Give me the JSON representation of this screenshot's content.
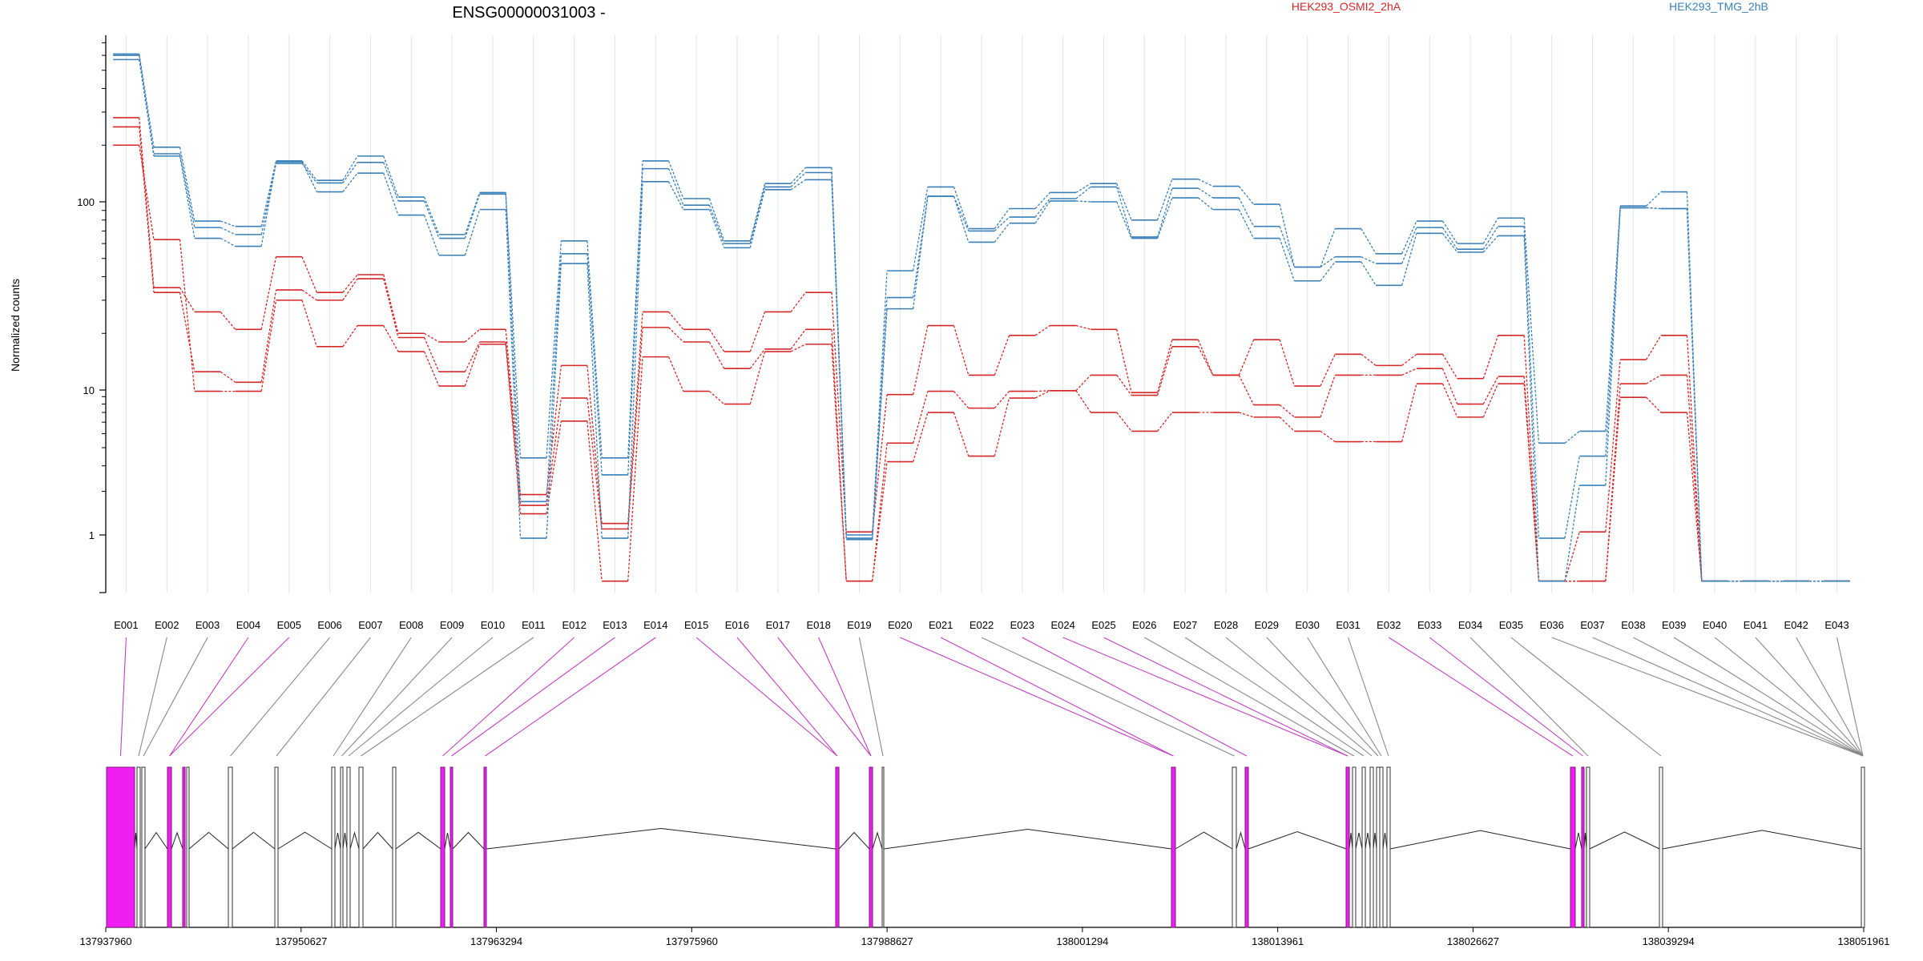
{
  "chart_data": {
    "type": "line",
    "title": "ENSG00000031003 -",
    "ylabel": "Normalized counts",
    "y_scale": "log",
    "ylim": [
      0.45,
      800
    ],
    "y_ticks": [
      {
        "value": 1,
        "label": "1"
      },
      {
        "value": 10,
        "label": "10"
      },
      {
        "value": 100,
        "label": "100"
      }
    ],
    "grid": "vertical, light blue-gray",
    "legend_position": "top-right",
    "legend": [
      {
        "name": "HEK293_OSMI2_2hA",
        "color": "#d62728"
      },
      {
        "name": "HEK293_TMG_2hB",
        "color": "#3a7fb8"
      }
    ],
    "categories": [
      "E001",
      "E002",
      "E003",
      "E004",
      "E005",
      "E006",
      "E007",
      "E008",
      "E009",
      "E010",
      "E011",
      "E012",
      "E013",
      "E014",
      "E015",
      "E016",
      "E017",
      "E018",
      "E019",
      "E020",
      "E021",
      "E022",
      "E023",
      "E024",
      "E025",
      "E026",
      "E027",
      "E028",
      "E029",
      "E030",
      "E031",
      "E032",
      "E033",
      "E034",
      "E035",
      "E036",
      "E037",
      "E038",
      "E039",
      "E040",
      "E041",
      "E042",
      "E043"
    ],
    "series": [
      {
        "name": "HEK293_OSMI2_2hA",
        "color": "#d62728",
        "values": [
          280,
          35,
          26,
          21,
          51,
          33,
          41,
          20,
          18,
          21,
          1.9,
          13.5,
          1.2,
          26,
          21,
          16,
          26,
          33,
          1.05,
          9.3,
          22,
          12,
          19.5,
          22,
          21,
          9.6,
          18.5,
          12,
          18.5,
          10.5,
          15.5,
          13.5,
          15.5,
          11.5,
          19.5,
          0.48,
          1.05,
          14.5,
          19.5,
          0.48,
          0.48,
          0.48,
          0.48
        ]
      },
      {
        "name": "HEK293_OSMI2_2hA",
        "color": "#d62728",
        "values": [
          250,
          33,
          12.5,
          11,
          34,
          30,
          39,
          19,
          12.5,
          18,
          1.6,
          8.8,
          1.1,
          21.5,
          18,
          13,
          16.5,
          21,
          0.48,
          4.3,
          9.8,
          7.5,
          9.8,
          9.9,
          12,
          9.2,
          17,
          12,
          7.9,
          6.5,
          12,
          12,
          13,
          8,
          11.8,
          0.48,
          0.48,
          10.8,
          12,
          0.48,
          0.48,
          0.48,
          0.48
        ]
      },
      {
        "name": "HEK293_OSMI2_2hA",
        "color": "#d62728",
        "values": [
          200,
          63,
          9.8,
          9.8,
          30,
          17,
          22,
          16,
          10.5,
          17.5,
          1.4,
          6.1,
          0.48,
          15,
          9.8,
          8,
          16,
          17.5,
          0.48,
          3.2,
          7,
          3.5,
          8.8,
          9.9,
          7,
          5.2,
          7,
          7,
          6.5,
          5.2,
          4.4,
          4.4,
          10.8,
          6.5,
          10.8,
          0.48,
          0.48,
          8.9,
          7,
          0.48,
          0.48,
          0.48,
          0.48
        ]
      },
      {
        "name": "HEK293_TMG_2hB",
        "color": "#3a7fb8",
        "values": [
          610,
          195,
          79,
          74,
          165,
          130,
          175,
          106,
          67,
          112,
          3.4,
          62,
          3.4,
          165,
          104,
          62,
          125,
          152,
          1.0,
          43,
          120,
          72,
          92,
          112,
          125,
          80,
          132,
          121,
          97,
          45,
          72,
          53,
          79,
          60,
          82,
          4.3,
          5.2,
          95,
          113,
          0.48,
          0.48,
          0.48,
          0.48
        ]
      },
      {
        "name": "HEK293_TMG_2hB",
        "color": "#3a7fb8",
        "values": [
          600,
          180,
          73,
          67,
          160,
          126,
          162,
          101,
          64,
          110,
          1.7,
          53,
          2.6,
          150,
          96,
          60,
          120,
          143,
          0.95,
          31,
          107,
          70,
          83,
          104,
          120,
          65,
          118,
          105,
          74,
          45,
          51,
          47,
          73,
          56,
          74,
          0.95,
          3.5,
          93,
          92,
          0.48,
          0.48,
          0.48,
          0.48
        ]
      },
      {
        "name": "HEK293_TMG_2hB",
        "color": "#3a7fb8",
        "values": [
          570,
          175,
          64,
          58,
          163,
          113,
          142,
          85,
          52,
          91,
          0.95,
          47,
          0.95,
          128,
          91,
          57,
          116,
          131,
          0.93,
          27,
          107,
          61,
          77,
          101,
          100,
          64,
          105,
          91,
          64,
          38,
          48,
          36,
          68,
          54,
          66,
          0.48,
          2.2,
          93,
          92,
          0.48,
          0.48,
          0.48,
          0.48
        ]
      }
    ],
    "genomic_axis": {
      "ticks": [
        "137937960",
        "137950627",
        "137963294",
        "137975960",
        "137988627",
        "138001294",
        "138013961",
        "138026627",
        "138039294",
        "138051961"
      ]
    }
  }
}
